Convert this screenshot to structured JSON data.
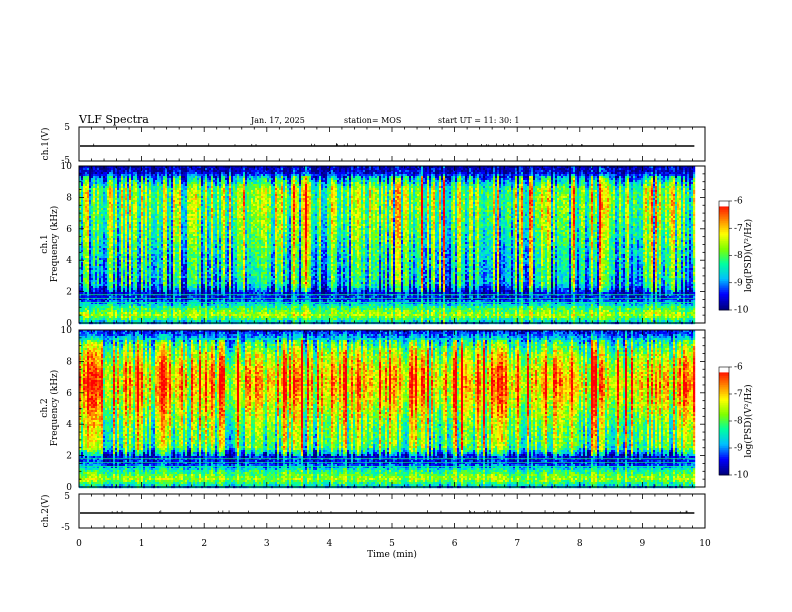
{
  "header": {
    "title": "VLF Spectra",
    "date": "Jan. 17, 2025",
    "station": "station= MOS",
    "start": "start UT =  11: 30: 1"
  },
  "chart_data": [
    {
      "type": "line",
      "panel": "ch1-waveform",
      "ylabel": "ch.1(V)",
      "ylim": [
        -5,
        5
      ],
      "yticks": [
        5,
        -5
      ],
      "xlim": [
        0,
        10
      ],
      "data_end_min": 9.83,
      "series": [
        {
          "baseline": 0
        }
      ]
    },
    {
      "type": "heatmap",
      "panel": "ch1-spectrogram",
      "ylabel_line1": "ch.1",
      "ylabel_line2": "Frequency (kHz)",
      "ylim": [
        0,
        10
      ],
      "yticks": [
        0,
        2,
        4,
        6,
        8,
        10
      ],
      "xlim": [
        0,
        10
      ],
      "data_end_min": 9.83,
      "colorbar": {
        "label": "log(PSD)(V²/Hz)",
        "ticks": [
          -6,
          -7,
          -8,
          -9,
          -10
        ],
        "range": [
          -10,
          -6
        ]
      },
      "profile": {
        "freq_khz": [
          0,
          0.5,
          1.0,
          1.5,
          1.9,
          2.5,
          3.5,
          4.5,
          5.5,
          6.5,
          7.5,
          8.5,
          9.2,
          9.6,
          10
        ],
        "level": [
          0.3,
          0.62,
          0.45,
          0.15,
          0.12,
          0.35,
          0.38,
          0.42,
          0.48,
          0.52,
          0.56,
          0.55,
          0.3,
          0.08,
          0.05
        ]
      }
    },
    {
      "type": "heatmap",
      "panel": "ch2-spectrogram",
      "ylabel_line1": "ch.2",
      "ylabel_line2": "Frequency (kHz)",
      "ylim": [
        0,
        10
      ],
      "yticks": [
        0,
        2,
        4,
        6,
        8,
        10
      ],
      "xlim": [
        0,
        10
      ],
      "data_end_min": 9.83,
      "colorbar": {
        "label": "log(PSD)(V²/Hz)",
        "ticks": [
          -6,
          -7,
          -8,
          -9,
          -10
        ],
        "range": [
          -10,
          -6
        ]
      },
      "profile": {
        "freq_khz": [
          0,
          0.5,
          1.0,
          1.5,
          1.9,
          2.5,
          3.5,
          4.5,
          5.5,
          6.5,
          7.5,
          8.5,
          9.2,
          9.6,
          10
        ],
        "level": [
          0.3,
          0.6,
          0.45,
          0.15,
          0.12,
          0.5,
          0.55,
          0.62,
          0.72,
          0.8,
          0.74,
          0.62,
          0.45,
          0.25,
          0.1
        ]
      }
    },
    {
      "type": "line",
      "panel": "ch2-waveform",
      "ylabel": "ch.2(V)",
      "ylim": [
        -5,
        5
      ],
      "yticks": [
        5,
        -5
      ],
      "xlim": [
        0,
        10
      ],
      "data_end_min": 9.83,
      "series": [
        {
          "baseline": 0
        }
      ]
    }
  ],
  "xaxis": {
    "label": "Time (min)",
    "ticks": [
      0,
      1,
      2,
      3,
      4,
      5,
      6,
      7,
      8,
      9,
      10
    ]
  },
  "colormap": [
    "#000080",
    "#0000ff",
    "#00bfff",
    "#00ffa0",
    "#7fff00",
    "#ffff00",
    "#ff8000",
    "#ff0000",
    "#ffffff"
  ]
}
